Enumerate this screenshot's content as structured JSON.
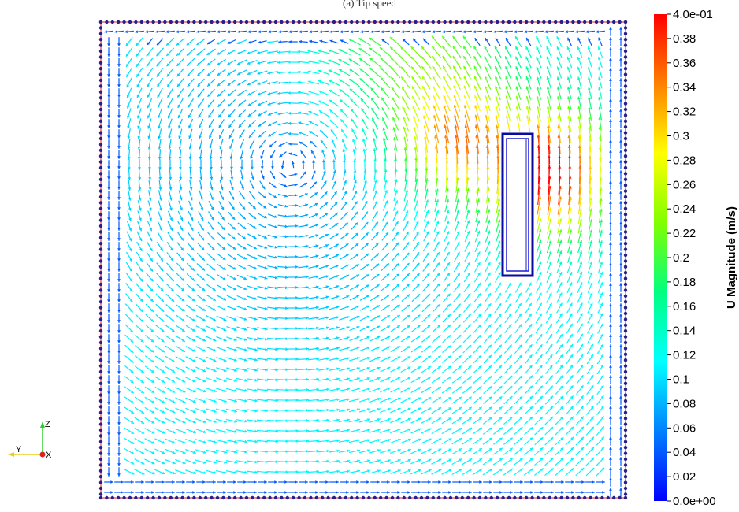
{
  "header": {
    "title": "(a) Tip speed"
  },
  "colorbar": {
    "title": "U Magnitude (m/s)",
    "range": [
      0.0,
      0.4
    ],
    "labels": [
      "4.0e-01",
      "0.38",
      "0.36",
      "0.34",
      "0.32",
      "0.3",
      "0.28",
      "0.26",
      "0.24",
      "0.22",
      "0.2",
      "0.18",
      "0.16",
      "0.14",
      "0.12",
      "0.1",
      "0.08",
      "0.06",
      "0.04",
      "0.02",
      "0.0e+00"
    ],
    "colormap": [
      "#0000ff",
      "#0080ff",
      "#00ffff",
      "#00ff80",
      "#80ff00",
      "#ffff00",
      "#ff8000",
      "#ff0000"
    ]
  },
  "domain": {
    "boundary_color": "#e0202a",
    "point_color": "#2a1f8a",
    "obstacle_color": "#0a0aa0"
  },
  "axes": {
    "z": "Z",
    "y": "Y",
    "x": "X",
    "z_color": "#2bd02b",
    "y_color": "#e8d01a",
    "x_color": "#e02020"
  }
}
